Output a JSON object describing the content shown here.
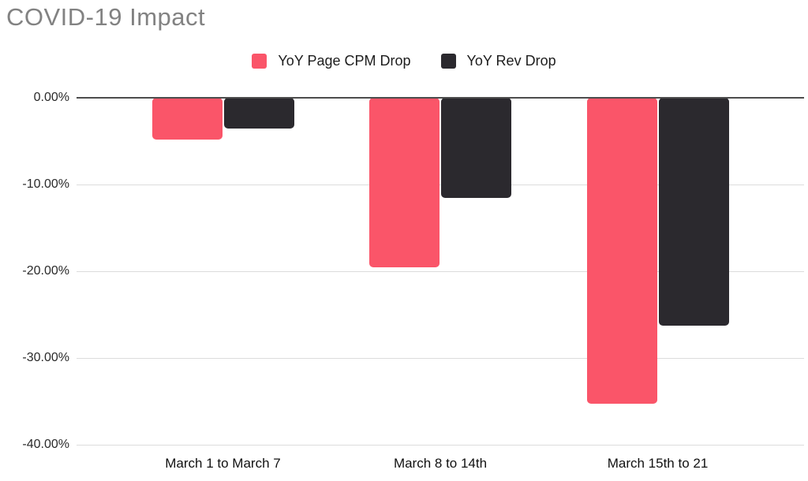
{
  "title": "COVID-19 Impact",
  "colors": {
    "cpm_series": "#FA5569",
    "rev_series": "#2B292E",
    "title_text": "#828282",
    "gridline": "#DCDCDC",
    "zero_axis": "#4D4D4D",
    "tick_text": "#2A2A2A"
  },
  "legend": {
    "items": [
      {
        "label": "YoY Page CPM Drop",
        "color": "#FA5569"
      },
      {
        "label": "YoY Rev Drop",
        "color": "#2B292E"
      }
    ]
  },
  "chart_data": {
    "type": "bar",
    "title": "COVID-19 Impact",
    "categories": [
      "March 1 to March 7",
      "March 8 to 14th",
      "March 15th to 21"
    ],
    "series": [
      {
        "name": "YoY Page CPM Drop",
        "color": "#FA5569",
        "values": [
          -4.8,
          -19.5,
          -35.3
        ]
      },
      {
        "name": "YoY Rev Drop",
        "color": "#2B292E",
        "values": [
          -3.5,
          -11.5,
          -26.3
        ]
      }
    ],
    "xlabel": "",
    "ylabel": "",
    "ylim": [
      -40,
      0
    ],
    "yticks": [
      {
        "value": 0,
        "label": "0.00%"
      },
      {
        "value": -10,
        "label": "-10.00%"
      },
      {
        "value": -20,
        "label": "-20.00%"
      },
      {
        "value": -30,
        "label": "-30.00%"
      },
      {
        "value": -40,
        "label": "-40.00%"
      }
    ],
    "grid": true,
    "legend_position": "top-center"
  }
}
